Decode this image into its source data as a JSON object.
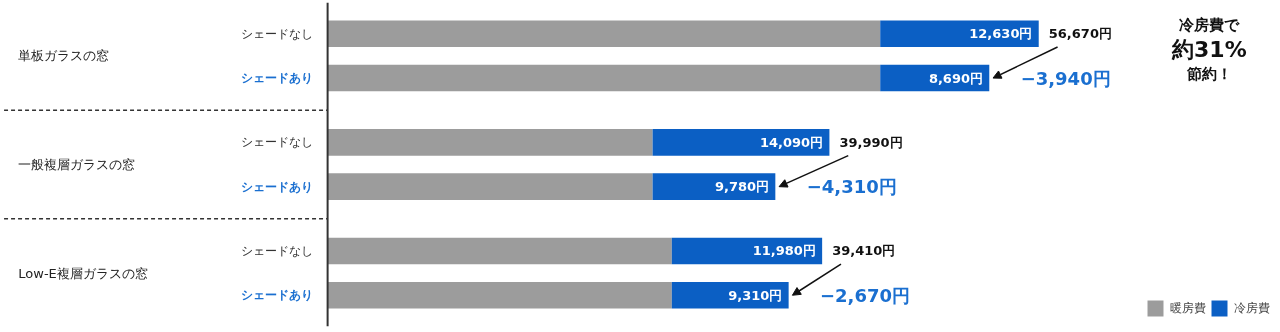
{
  "chart_data": {
    "type": "bar",
    "orientation": "horizontal",
    "stacked": true,
    "categories": [
      "シェードなし",
      "シェードあり",
      "シェードなし",
      "シェードあり",
      "シェードなし",
      "シェードあり"
    ],
    "series": [
      {
        "name": "暖房費",
        "color": "#9c9c9c",
        "values": [
          44040,
          44040,
          25900,
          25900,
          27430,
          27430
        ]
      },
      {
        "name": "冷房費",
        "color": "#0b5fc4",
        "values": [
          12630,
          8690,
          14090,
          9780,
          11980,
          9310
        ],
        "value_labels": [
          "12,630円",
          "8,690円",
          "14,090円",
          "9,780円",
          "11,980円",
          "9,310円"
        ]
      }
    ],
    "totals": [
      "56,670円",
      null,
      "39,990円",
      null,
      "39,410円",
      null
    ],
    "annotations": [
      "単板ガラスの窓",
      "一般複層ガラスの窓",
      "Low-E複層ガラスの窓",
      "−3,940円",
      "−4,310円",
      "−2,670円",
      "冷房費で",
      "約31%",
      "節約！"
    ],
    "tick_labels": false,
    "grid": false,
    "legend": "bottom right"
  }
}
